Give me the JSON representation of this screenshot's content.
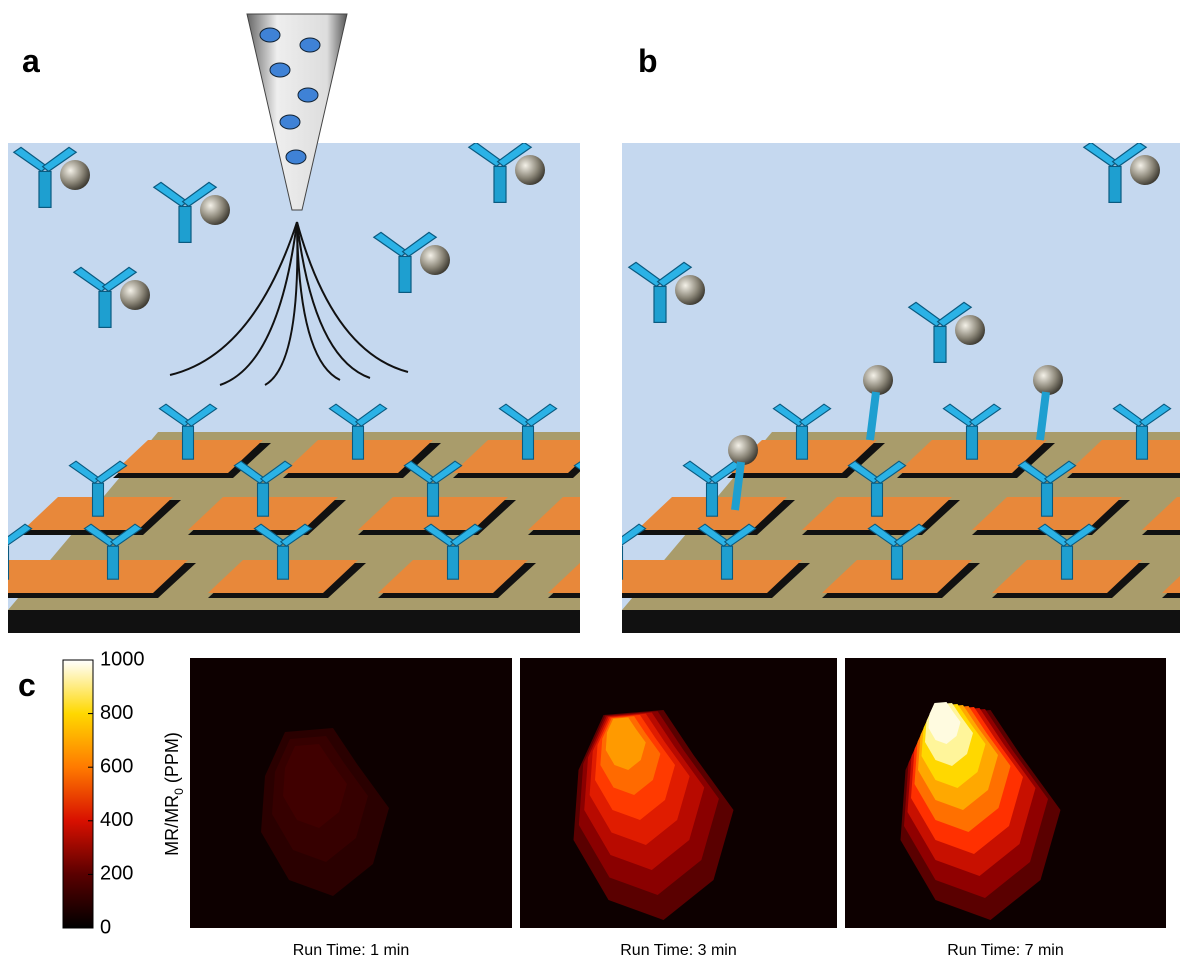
{
  "panels": {
    "a": "a",
    "b": "b",
    "c": "c"
  },
  "colorbar": {
    "label": {
      "main": "MR/MR",
      "subscript": "0",
      "unit": "(PPM)"
    },
    "lim": [
      0,
      1000
    ],
    "ticks": [
      0,
      200,
      400,
      600,
      800,
      1000
    ]
  },
  "heatmaps": [
    {
      "caption": "Run Time: 1 min"
    },
    {
      "caption": "Run Time: 3 min"
    },
    {
      "caption": "Run Time: 7 min"
    }
  ]
}
